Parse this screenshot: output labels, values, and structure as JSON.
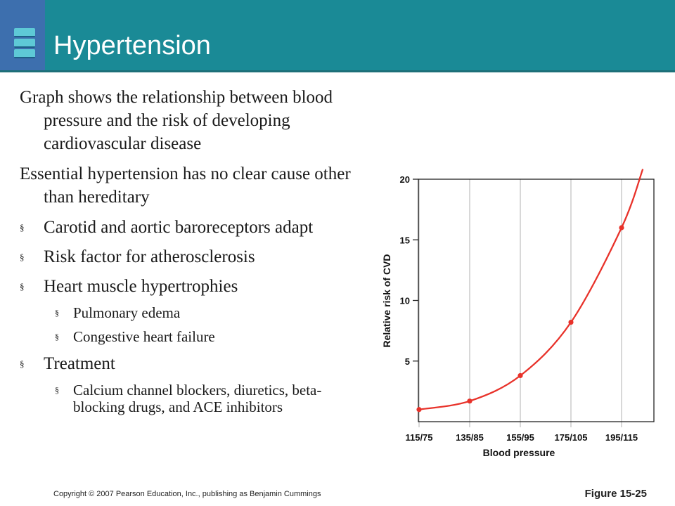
{
  "slide": {
    "title": "Hypertension",
    "paragraphs": [
      "Graph shows the relationship between blood pressure and the risk of developing cardiovascular disease",
      "Essential hypertension has no clear cause other than hereditary"
    ],
    "bullets": [
      {
        "text": "Carotid and aortic baroreceptors adapt",
        "sub": []
      },
      {
        "text": "Risk factor for atherosclerosis",
        "sub": []
      },
      {
        "text": "Heart muscle hypertrophies",
        "sub": [
          "Pulmonary edema",
          "Congestive heart failure"
        ]
      },
      {
        "text": "Treatment",
        "sub": [
          "Calcium channel blockers, diuretics, beta-blocking drugs, and ACE inhibitors"
        ]
      }
    ],
    "bullet_glyph": "§",
    "footer_copyright": "Copyright © 2007 Pearson Education, Inc., publishing as Benjamin Cummings",
    "figure_label": "Figure 15-25"
  },
  "colors": {
    "header": "#1a8a96",
    "header_accent": "#3d6fae",
    "curve": "#e8322a"
  },
  "chart_data": {
    "type": "line",
    "title": "",
    "xlabel": "Blood pressure",
    "ylabel": "Relative risk of CVD",
    "categories": [
      "115/75",
      "135/85",
      "155/95",
      "175/105",
      "195/115"
    ],
    "series": [
      {
        "values": [
          1,
          1.7,
          3.8,
          8.2,
          16
        ]
      }
    ],
    "yticks": [
      5,
      10,
      15,
      20
    ],
    "ylim": [
      0,
      20
    ],
    "grid": "vertical"
  }
}
